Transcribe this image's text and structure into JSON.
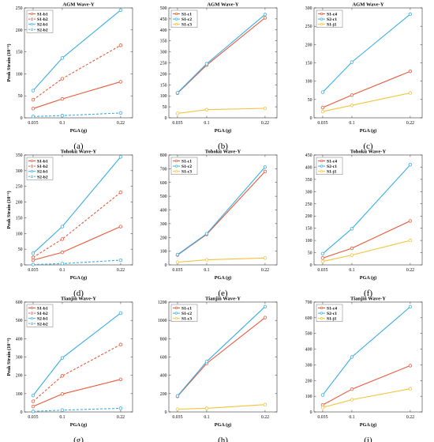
{
  "colors": {
    "red": "#e8593a",
    "blue": "#3aaee3",
    "yellow": "#f3c33b"
  },
  "chart_data": [
    {
      "type": "line",
      "panel": "a",
      "caption": "(a)",
      "title": "AGM Wave-Y",
      "xlabel": "PGA (g)",
      "ylabel": "Peak Strain (10⁻⁶)",
      "x": [
        "0.035",
        "0.1",
        "0.22"
      ],
      "ylim": [
        0,
        250
      ],
      "yticks": [
        0,
        50,
        100,
        150,
        200,
        250
      ],
      "legend": "top-left",
      "series": [
        {
          "name": "S1-b1",
          "color": "red",
          "dash": false,
          "values": [
            21,
            43,
            82
          ]
        },
        {
          "name": "S1-b2",
          "color": "red",
          "dash": true,
          "values": [
            41,
            89,
            165
          ]
        },
        {
          "name": "S2-b1",
          "color": "blue",
          "dash": false,
          "values": [
            62,
            136,
            245
          ]
        },
        {
          "name": "S2-b2",
          "color": "blue",
          "dash": true,
          "values": [
            3,
            5,
            11
          ]
        }
      ]
    },
    {
      "type": "line",
      "panel": "b",
      "caption": "(b)",
      "title": "AGM Wave-Y",
      "xlabel": "PGA (g)",
      "ylabel": "",
      "x": [
        "0.035",
        "0.1",
        "0.22"
      ],
      "ylim": [
        0,
        500
      ],
      "yticks": [
        0,
        50,
        100,
        150,
        200,
        250,
        300,
        350,
        400,
        450,
        500
      ],
      "legend": "top-left",
      "series": [
        {
          "name": "S1-c1",
          "color": "red",
          "dash": false,
          "values": [
            112,
            240,
            455
          ]
        },
        {
          "name": "S1-c2",
          "color": "blue",
          "dash": false,
          "values": [
            114,
            246,
            470
          ]
        },
        {
          "name": "S1-c3",
          "color": "yellow",
          "dash": false,
          "values": [
            20,
            37,
            43
          ]
        }
      ]
    },
    {
      "type": "line",
      "panel": "c",
      "caption": "(c)",
      "title": "AGM Wave-Y",
      "xlabel": "PGA (g)",
      "ylabel": "",
      "x": [
        "0.035",
        "0.1",
        "0.22"
      ],
      "ylim": [
        0,
        300
      ],
      "yticks": [
        0,
        50,
        100,
        150,
        200,
        250,
        300
      ],
      "legend": "top-left",
      "series": [
        {
          "name": "S1-c4",
          "color": "red",
          "dash": false,
          "values": [
            28,
            62,
            127
          ]
        },
        {
          "name": "S2-c1",
          "color": "blue",
          "dash": false,
          "values": [
            70,
            152,
            283
          ]
        },
        {
          "name": "S1-j1",
          "color": "yellow",
          "dash": false,
          "values": [
            17,
            34,
            68
          ]
        }
      ]
    },
    {
      "type": "line",
      "panel": "d",
      "caption": "(d)",
      "title": "Tohoku Wave-Y",
      "xlabel": "PGA (g)",
      "ylabel": "Peak Strain (10⁻⁶)",
      "x": [
        "0.035",
        "0.1",
        "0.22"
      ],
      "ylim": [
        0,
        350
      ],
      "yticks": [
        0,
        50,
        100,
        150,
        200,
        250,
        300,
        350
      ],
      "legend": "top-left",
      "series": [
        {
          "name": "S1-b1",
          "color": "red",
          "dash": false,
          "values": [
            15,
            40,
            122
          ]
        },
        {
          "name": "S1-b2",
          "color": "red",
          "dash": true,
          "values": [
            24,
            82,
            231
          ]
        },
        {
          "name": "S2-b1",
          "color": "blue",
          "dash": false,
          "values": [
            37,
            122,
            344
          ]
        },
        {
          "name": "S2-b2",
          "color": "blue",
          "dash": true,
          "values": [
            1,
            4,
            15
          ]
        }
      ]
    },
    {
      "type": "line",
      "panel": "e",
      "caption": "(e)",
      "title": "Tohoku Wave-Y",
      "xlabel": "PGA (g)",
      "ylabel": "",
      "x": [
        "0.035",
        "0.1",
        "0.22"
      ],
      "ylim": [
        0,
        800
      ],
      "yticks": [
        0,
        100,
        200,
        300,
        400,
        500,
        600,
        700,
        800
      ],
      "legend": "top-left",
      "series": [
        {
          "name": "S1-c1",
          "color": "red",
          "dash": false,
          "values": [
            72,
            222,
            680
          ]
        },
        {
          "name": "S1-c2",
          "color": "blue",
          "dash": false,
          "values": [
            75,
            227,
            712
          ]
        },
        {
          "name": "S1-c3",
          "color": "yellow",
          "dash": false,
          "values": [
            20,
            37,
            50
          ]
        }
      ]
    },
    {
      "type": "line",
      "panel": "f",
      "caption": "(f)",
      "title": "Tohoku Wave-Y",
      "xlabel": "PGA (g)",
      "ylabel": "",
      "x": [
        "0.035",
        "0.1",
        "0.22"
      ],
      "ylim": [
        0,
        450
      ],
      "yticks": [
        0,
        50,
        100,
        150,
        200,
        250,
        300,
        350,
        400,
        450
      ],
      "legend": "top-left",
      "series": [
        {
          "name": "S1-c4",
          "color": "red",
          "dash": false,
          "values": [
            28,
            68,
            180
          ]
        },
        {
          "name": "S2-c1",
          "color": "blue",
          "dash": false,
          "values": [
            46,
            148,
            410
          ]
        },
        {
          "name": "S1-j1",
          "color": "yellow",
          "dash": false,
          "values": [
            14,
            40,
            100
          ]
        }
      ]
    },
    {
      "type": "line",
      "panel": "g",
      "caption": "(g)",
      "title": "Tianjin Wave-Y",
      "xlabel": "PGA (g)",
      "ylabel": "Peak Strain (10⁻⁶)",
      "x": [
        "0.035",
        "0.1",
        "0.22"
      ],
      "ylim": [
        0,
        600
      ],
      "yticks": [
        0,
        100,
        200,
        300,
        400,
        500,
        600
      ],
      "legend": "top-left",
      "series": [
        {
          "name": "S1-b1",
          "color": "red",
          "dash": false,
          "values": [
            30,
            98,
            178
          ]
        },
        {
          "name": "S1-b2",
          "color": "red",
          "dash": true,
          "values": [
            58,
            197,
            368
          ]
        },
        {
          "name": "S2-b1",
          "color": "blue",
          "dash": false,
          "values": [
            90,
            295,
            540
          ]
        },
        {
          "name": "S2-b2",
          "color": "blue",
          "dash": true,
          "values": [
            3,
            10,
            20
          ]
        }
      ]
    },
    {
      "type": "line",
      "panel": "h",
      "caption": "(h)",
      "title": "Tianjin Wave-Y",
      "xlabel": "PGA (g)",
      "ylabel": "",
      "x": [
        "0.035",
        "0.1",
        "0.22"
      ],
      "ylim": [
        0,
        1200
      ],
      "yticks": [
        0,
        200,
        400,
        600,
        800,
        1000,
        1200
      ],
      "legend": "top-left",
      "series": [
        {
          "name": "S1-c1",
          "color": "red",
          "dash": false,
          "values": [
            170,
            530,
            1030
          ]
        },
        {
          "name": "S1-c2",
          "color": "blue",
          "dash": false,
          "values": [
            175,
            550,
            1150
          ]
        },
        {
          "name": "S1-c3",
          "color": "yellow",
          "dash": false,
          "values": [
            30,
            40,
            80
          ]
        }
      ]
    },
    {
      "type": "line",
      "panel": "i",
      "caption": "(i)",
      "title": "Tianjin Wave-Y",
      "xlabel": "PGA (g)",
      "ylabel": "",
      "x": [
        "0.035",
        "0.1",
        "0.22"
      ],
      "ylim": [
        0,
        700
      ],
      "yticks": [
        0,
        100,
        200,
        300,
        400,
        500,
        600,
        700
      ],
      "legend": "top-left",
      "series": [
        {
          "name": "S1-c4",
          "color": "red",
          "dash": false,
          "values": [
            45,
            145,
            295
          ]
        },
        {
          "name": "S2-c1",
          "color": "blue",
          "dash": false,
          "values": [
            108,
            350,
            670
          ]
        },
        {
          "name": "S1-j1",
          "color": "yellow",
          "dash": false,
          "values": [
            28,
            78,
            148
          ]
        }
      ]
    }
  ]
}
